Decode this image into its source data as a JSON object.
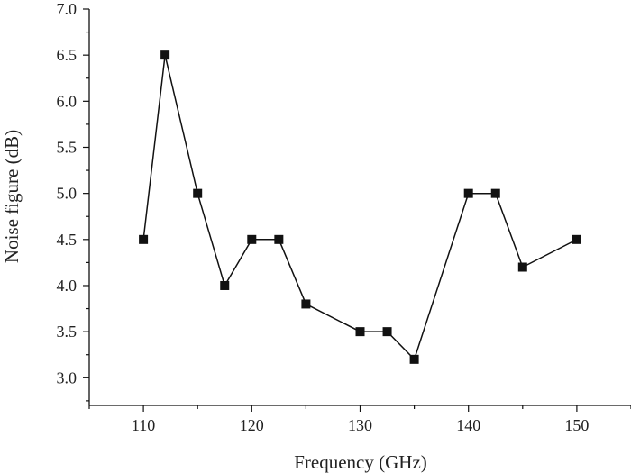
{
  "chart_data": {
    "type": "line",
    "title": "",
    "xlabel": "Frequency (GHz)",
    "ylabel": "Noise figure (dB)",
    "xlim": [
      105,
      155
    ],
    "ylim": [
      2.7,
      7.0
    ],
    "xticks": [
      110,
      120,
      130,
      140,
      150
    ],
    "yticks": [
      3.0,
      3.5,
      4.0,
      4.5,
      5.0,
      5.5,
      6.0,
      6.5,
      7.0
    ],
    "grid": false,
    "legend": "none",
    "series": [
      {
        "x": [
          110,
          112,
          115,
          117.5,
          120,
          122.5,
          125,
          130,
          132.5,
          135,
          140,
          142.5,
          145,
          150
        ],
        "y": [
          4.5,
          6.5,
          5.0,
          4.0,
          4.5,
          4.5,
          3.8,
          3.5,
          3.5,
          3.2,
          5.0,
          5.0,
          4.2,
          4.5
        ],
        "color": "#111111",
        "marker": "square"
      }
    ]
  }
}
